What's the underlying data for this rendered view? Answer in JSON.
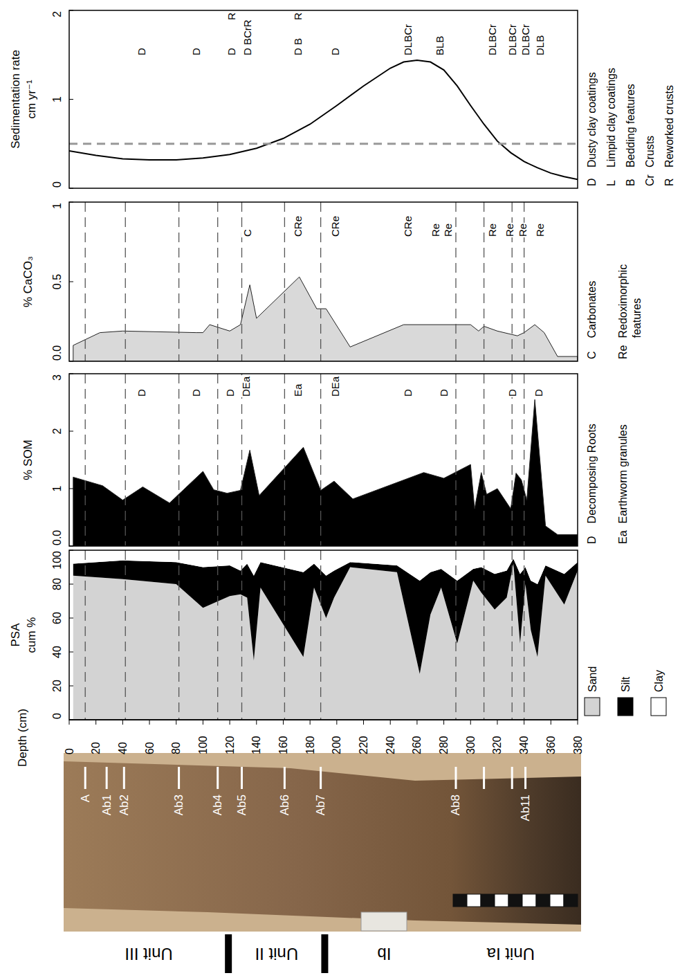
{
  "depth_axis": {
    "label": "Depth (cm)",
    "xlim": [
      0,
      380
    ],
    "xticks": [
      0,
      20,
      40,
      60,
      80,
      100,
      120,
      140,
      160,
      180,
      200,
      220,
      240,
      260,
      280,
      300,
      320,
      340,
      360,
      380
    ]
  },
  "horizon_boundaries": [
    12,
    42,
    82,
    111,
    129,
    161,
    188,
    289,
    310,
    331,
    340
  ],
  "chart_data": [
    {
      "type": "line",
      "y_label": [
        "Sedimentation rate",
        "cm yr⁻¹"
      ],
      "color": "#000000",
      "legend": "right",
      "x": [
        0,
        20,
        40,
        60,
        80,
        100,
        120,
        140,
        160,
        180,
        200,
        220,
        240,
        250,
        260,
        270,
        280,
        290,
        300,
        310,
        320,
        330,
        340,
        350,
        360,
        370,
        380
      ],
      "values": [
        0.42,
        0.37,
        0.33,
        0.32,
        0.32,
        0.34,
        0.38,
        0.45,
        0.56,
        0.72,
        0.93,
        1.15,
        1.35,
        1.42,
        1.44,
        1.42,
        1.33,
        1.15,
        0.93,
        0.72,
        0.53,
        0.4,
        0.3,
        0.23,
        0.17,
        0.13,
        0.1
      ],
      "ylim": [
        0,
        2
      ],
      "yticks": [
        0,
        1,
        2
      ],
      "reference_line": {
        "value": 0.5,
        "color": "#999999",
        "line_style": "dashed"
      },
      "annotations": [
        {
          "x": 54,
          "text": "D"
        },
        {
          "x": 95,
          "text": "D"
        },
        {
          "x": 121,
          "text": "D"
        },
        {
          "x": 133,
          "text": "D BCrR"
        },
        {
          "x": 171,
          "text": "D B"
        },
        {
          "x": 199,
          "text": "D"
        },
        {
          "x": 253,
          "text": "DLBCr"
        },
        {
          "x": 277,
          "text": "BLB"
        },
        {
          "x": 316,
          "text": "DLBCr"
        },
        {
          "x": 331,
          "text": "DLBCr"
        },
        {
          "x": 341,
          "text": "DLBCr"
        },
        {
          "x": 352,
          "text": "DLB"
        }
      ],
      "top_annotations": [
        {
          "x": 121,
          "text": "R"
        },
        {
          "x": 171,
          "text": "R"
        }
      ],
      "legend_items": [
        {
          "key": "D",
          "text": "Dusty clay coatings"
        },
        {
          "key": "L",
          "text": "Limpid clay coatings"
        },
        {
          "key": "B",
          "text": "Bedding features"
        },
        {
          "key": "Cr",
          "text": "Crusts"
        },
        {
          "key": "R",
          "text": "Reworked crusts"
        }
      ]
    },
    {
      "type": "area",
      "y_label": [
        "% CaCO₃"
      ],
      "color": "#d9d9d9",
      "legend": "right",
      "x": [
        3,
        23,
        40,
        95,
        100,
        105,
        120,
        128,
        135,
        140,
        172,
        185,
        192,
        210,
        250,
        300,
        306,
        310,
        320,
        335,
        340,
        348,
        355,
        365,
        380
      ],
      "values": [
        0.1,
        0.18,
        0.19,
        0.18,
        0.18,
        0.23,
        0.19,
        0.23,
        0.48,
        0.27,
        0.53,
        0.33,
        0.33,
        0.09,
        0.23,
        0.23,
        0.19,
        0.22,
        0.19,
        0.16,
        0.18,
        0.23,
        0.18,
        0.03,
        0.03
      ],
      "ylim": [
        0,
        1
      ],
      "yticks": [
        {
          "value": 0,
          "label": "0.0"
        },
        0.5,
        1
      ],
      "annotations": [
        {
          "x": 133,
          "text": "C"
        },
        {
          "x": 171,
          "text": "CRe"
        },
        {
          "x": 199,
          "text": "CRe"
        },
        {
          "x": 253,
          "text": "CRe"
        },
        {
          "x": 274,
          "text": "Re"
        },
        {
          "x": 283,
          "text": "Re"
        },
        {
          "x": 316,
          "text": "Re"
        },
        {
          "x": 329,
          "text": "Re"
        },
        {
          "x": 339,
          "text": "Re"
        },
        {
          "x": 352,
          "text": "Re"
        }
      ],
      "legend_items": [
        {
          "key": "C",
          "text": "Carbonates"
        },
        {
          "key": "Re",
          "text": "Redoximorphic features"
        }
      ]
    },
    {
      "type": "area",
      "y_label": [
        "% SOM"
      ],
      "color": "#000000",
      "legend": "right",
      "x": [
        3,
        25,
        40,
        55,
        75,
        100,
        108,
        118,
        128,
        135,
        142,
        175,
        188,
        198,
        212,
        265,
        280,
        300,
        303,
        308,
        312,
        320,
        330,
        334,
        338,
        342,
        348,
        356,
        365,
        380
      ],
      "values": [
        1.2,
        1.05,
        0.8,
        1.03,
        0.75,
        1.3,
        0.98,
        0.92,
        0.97,
        1.67,
        0.88,
        1.72,
        0.97,
        1.13,
        0.82,
        1.28,
        1.18,
        1.42,
        0.65,
        1.28,
        0.9,
        1.0,
        0.65,
        1.27,
        1.15,
        0.8,
        2.55,
        0.35,
        0.2,
        0.2
      ],
      "ylim": [
        0,
        3
      ],
      "yticks": [
        {
          "value": 0,
          "label": "0.0"
        },
        1,
        2,
        3
      ],
      "annotations": [
        {
          "x": 54,
          "text": "D"
        },
        {
          "x": 95,
          "text": "D"
        },
        {
          "x": 120,
          "text": "D"
        },
        {
          "x": 132,
          "text": "DEa"
        },
        {
          "x": 171,
          "text": "Ea"
        },
        {
          "x": 199,
          "text": "DEa"
        },
        {
          "x": 253,
          "text": "D"
        },
        {
          "x": 280,
          "text": "D"
        },
        {
          "x": 331,
          "text": "D"
        },
        {
          "x": 351,
          "text": "D"
        }
      ],
      "legend_items": [
        {
          "key": "D",
          "text": "Decomposing Roots"
        },
        {
          "key": "Ea",
          "text": "Earthworm granules"
        }
      ]
    },
    {
      "type": "area",
      "stacked": true,
      "y_label": [
        "PSA",
        "cum %"
      ],
      "legend": "right",
      "x": [
        3,
        40,
        80,
        100,
        120,
        128,
        133,
        138,
        143,
        175,
        183,
        192,
        198,
        210,
        245,
        262,
        270,
        278,
        290,
        302,
        308,
        318,
        327,
        332,
        337,
        341,
        345,
        350,
        356,
        370,
        380
      ],
      "series": [
        {
          "name": "Sand",
          "color": "#d3d3d3",
          "values": [
            85,
            83,
            80,
            66,
            73,
            74,
            72,
            35,
            78,
            37,
            78,
            60,
            72,
            90,
            87,
            27,
            62,
            78,
            45,
            82,
            75,
            65,
            72,
            92,
            45,
            80,
            53,
            37,
            85,
            68,
            88
          ]
        },
        {
          "name": "Silt",
          "color": "#000000",
          "values": [
            7,
            11,
            13,
            24,
            18,
            14,
            20,
            50,
            15,
            50,
            14,
            25,
            16,
            3,
            4,
            55,
            25,
            11,
            37,
            7,
            15,
            21,
            16,
            3,
            41,
            10,
            29,
            43,
            6,
            18,
            5
          ]
        },
        {
          "name": "Clay",
          "color": "#ffffff",
          "values": [
            8,
            6,
            7,
            10,
            9,
            12,
            8,
            15,
            7,
            13,
            8,
            15,
            12,
            7,
            9,
            18,
            13,
            11,
            18,
            11,
            10,
            14,
            12,
            5,
            14,
            10,
            18,
            20,
            9,
            14,
            7
          ]
        }
      ],
      "ylim": [
        0,
        100
      ],
      "yticks": [
        0,
        20,
        40,
        60,
        80,
        100
      ]
    }
  ],
  "photo": {
    "horizons": [
      {
        "label": "A",
        "depth": 12
      },
      {
        "label": "Ab1",
        "depth": 28
      },
      {
        "label": "Ab2",
        "depth": 41
      },
      {
        "label": "Ab3",
        "depth": 82
      },
      {
        "label": "Ab4",
        "depth": 111
      },
      {
        "label": "Ab5",
        "depth": 129
      },
      {
        "label": "Ab6",
        "depth": 161
      },
      {
        "label": "Ab7",
        "depth": 188
      },
      {
        "label": "Ab8",
        "depth": 289
      },
      {
        "label": null,
        "depth": 310
      },
      {
        "label": null,
        "depth": 331
      },
      {
        "label": "Ab11",
        "depth": 341
      }
    ]
  },
  "units": {
    "items": [
      {
        "label": "Unit III",
        "from": 0,
        "to": 119
      },
      {
        "label": "Unit II",
        "from": 119,
        "to": 191
      },
      {
        "label": "Ib",
        "from": 191,
        "to": 280
      },
      {
        "label": "Unit Ia",
        "from": 280,
        "to": 380
      }
    ],
    "boundaries": [
      119,
      191
    ]
  }
}
